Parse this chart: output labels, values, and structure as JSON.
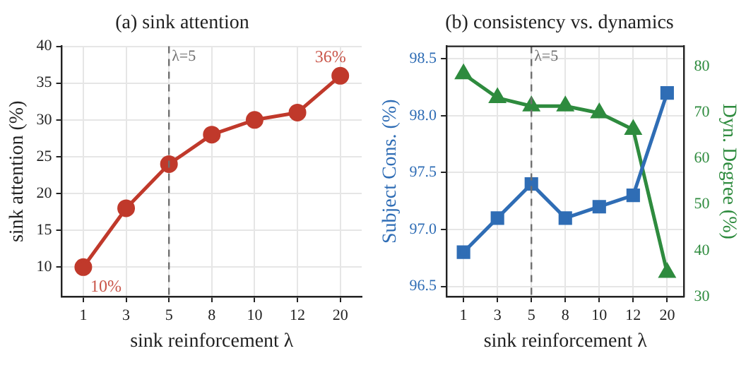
{
  "chart_data": [
    {
      "type": "line",
      "title": "(a) sink attention",
      "xlabel": "sink reinforcement λ",
      "ylabel": "sink attention (%)",
      "categories": [
        "1",
        "3",
        "5",
        "8",
        "10",
        "12",
        "20"
      ],
      "series": [
        {
          "color": "#c0392b",
          "values": [
            10,
            18,
            24,
            28,
            30,
            31,
            36
          ]
        }
      ],
      "ylim": [
        6,
        40
      ],
      "yticks": [
        10,
        15,
        20,
        25,
        30,
        35,
        40
      ],
      "grid": true,
      "legend": false,
      "marker": "circle",
      "line_style": "solid",
      "ref_lines": [
        {
          "axis": "x",
          "value": "5",
          "label": "λ=5",
          "color": "#707070",
          "line_style": "dashed"
        }
      ],
      "annotations": [
        {
          "text": "10%",
          "x": "1",
          "y": 10
        },
        {
          "text": "36%",
          "x": "20",
          "y": 36
        }
      ]
    },
    {
      "type": "line",
      "title": "(b) consistency vs. dynamics",
      "xlabel": "sink reinforcement λ",
      "ylabel": "Subject Cons. (%)",
      "y2label": "Dyn. Degree (%)",
      "categories": [
        "1",
        "3",
        "5",
        "8",
        "10",
        "12",
        "20"
      ],
      "series": [
        {
          "color": "#2f6db5",
          "marker": "square",
          "values": [
            96.8,
            97.1,
            97.4,
            97.1,
            97.2,
            97.3,
            98.2
          ]
        },
        {
          "color": "#2e8b3e",
          "marker": "triangle",
          "axis": "y2",
          "values": [
            78.4,
            73.2,
            71.4,
            71.4,
            69.9,
            66.3,
            35.2
          ]
        }
      ],
      "ylim": [
        96.41,
        98.61
      ],
      "yticks": [
        {
          "value": 96.5,
          "label": "96.5"
        },
        {
          "value": 97,
          "label": "97.0"
        },
        {
          "value": 97.5,
          "label": "97.5"
        },
        {
          "value": 98,
          "label": "98.0"
        },
        {
          "value": 98.5,
          "label": "98.5"
        }
      ],
      "y2lim": [
        30,
        84.4
      ],
      "y2ticks": [
        30,
        40,
        50,
        60,
        70,
        80
      ],
      "grid": true,
      "legend": false,
      "line_style": "solid",
      "ref_lines": [
        {
          "axis": "x",
          "value": "5",
          "label": "λ=5",
          "color": "#707070",
          "line_style": "dashed"
        }
      ]
    }
  ]
}
